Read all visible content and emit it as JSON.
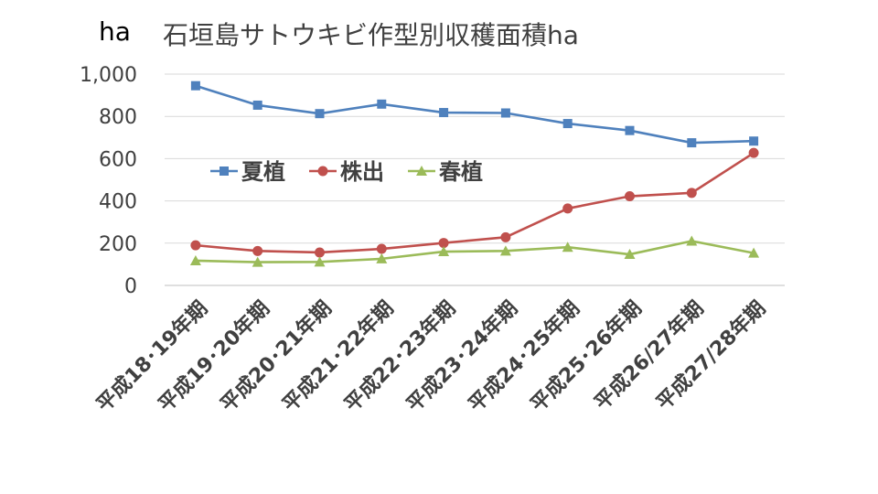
{
  "chart_data": {
    "type": "line",
    "title": "石垣島サトウキビ作型別収穫面積ha",
    "unit_label": "ha",
    "xlabel": "",
    "ylabel": "",
    "ylim": [
      0,
      1000
    ],
    "yticks": [
      0,
      200,
      400,
      600,
      800,
      1000
    ],
    "ytick_labels": [
      "0",
      "200",
      "400",
      "600",
      "800",
      "1,000"
    ],
    "grid": true,
    "legend_position": "center-left",
    "categories": [
      "平成18･19年期",
      "平成19･20年期",
      "平成20･21年期",
      "平成21･22年期",
      "平成22･23年期",
      "平成23･24年期",
      "平成24･25年期",
      "平成25･26年期",
      "平成26/27年期",
      "平成27/28年期"
    ],
    "series": [
      {
        "name": "夏植",
        "color": "#4f81bd",
        "marker": "square",
        "values": [
          945,
          853,
          813,
          858,
          818,
          816,
          766,
          733,
          675,
          683
        ]
      },
      {
        "name": "株出",
        "color": "#c0504d",
        "marker": "circle",
        "values": [
          190,
          163,
          156,
          173,
          201,
          228,
          364,
          422,
          438,
          627
        ]
      },
      {
        "name": "春植",
        "color": "#9bbb59",
        "marker": "triangle",
        "values": [
          117,
          110,
          111,
          126,
          160,
          163,
          181,
          147,
          210,
          153
        ]
      }
    ]
  }
}
